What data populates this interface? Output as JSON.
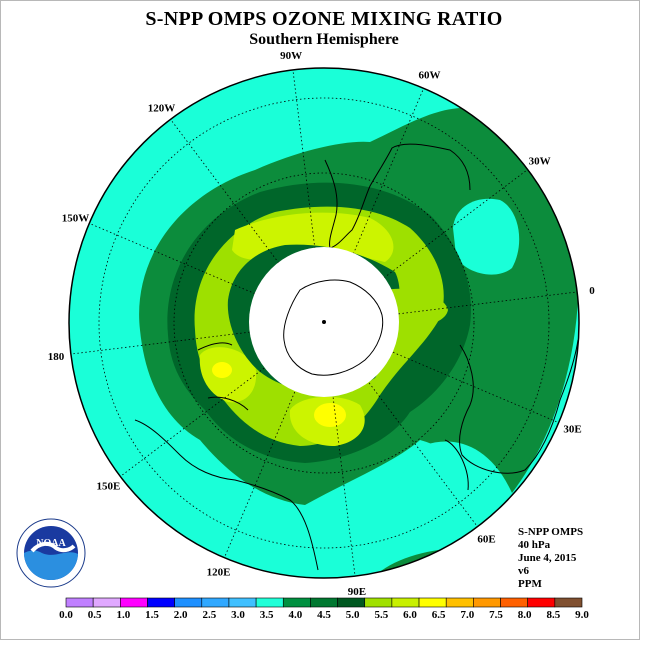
{
  "title": "S-NPP OMPS OZONE MIXING RATIO",
  "subtitle": "Southern Hemisphere",
  "longitude_labels": [
    {
      "id": "lon-90w",
      "text": "90W",
      "deg": -90
    },
    {
      "id": "lon-60w",
      "text": "60W",
      "deg": -60
    },
    {
      "id": "lon-30w",
      "text": "30W",
      "deg": -30
    },
    {
      "id": "lon-0",
      "text": "0",
      "deg": 0
    },
    {
      "id": "lon-30e",
      "text": "30E",
      "deg": 30
    },
    {
      "id": "lon-60e",
      "text": "60E",
      "deg": 60
    },
    {
      "id": "lon-90e",
      "text": "90E",
      "deg": 90
    },
    {
      "id": "lon-120e",
      "text": "120E",
      "deg": 120
    },
    {
      "id": "lon-150e",
      "text": "150E",
      "deg": 150
    },
    {
      "id": "lon-180",
      "text": "180",
      "deg": 180
    },
    {
      "id": "lon-150w",
      "text": "150W",
      "deg": -150
    },
    {
      "id": "lon-120w",
      "text": "120W",
      "deg": -120
    }
  ],
  "info": {
    "instrument": "S-NPP OMPS",
    "level": "40 hPa",
    "date": "June 4, 2015",
    "version": "v6",
    "units": "PPM"
  },
  "logo": {
    "text": "NOAA"
  },
  "colorbar": {
    "colors": [
      "#c080ff",
      "#e0a8ff",
      "#ff00ff",
      "#0000ff",
      "#1e90ff",
      "#30a8ff",
      "#40c0ff",
      "#20ffd8",
      "#009040",
      "#007830",
      "#005820",
      "#a0e000",
      "#c8f000",
      "#ffff00",
      "#ffc000",
      "#ff9800",
      "#ff6000",
      "#ff0000",
      "#805030"
    ],
    "labels": [
      "0.0",
      "0.5",
      "1.0",
      "1.5",
      "2.0",
      "2.5",
      "3.0",
      "3.5",
      "4.0",
      "4.5",
      "5.0",
      "5.5",
      "6.0",
      "6.5",
      "7.0",
      "7.5",
      "8.0",
      "8.5",
      "9.0"
    ]
  },
  "map": {
    "fill_colors": {
      "band_3_5_4": "#1affd8",
      "band_4_4_5": "#0c8c3c",
      "band_4_5_5": "#00662a",
      "band_5_5_5": "#9ee000",
      "band_5_5_6": "#ccf400",
      "band_6_6_5": "#ffff00",
      "no_data": "#ffffff",
      "coast": "#000000"
    }
  }
}
